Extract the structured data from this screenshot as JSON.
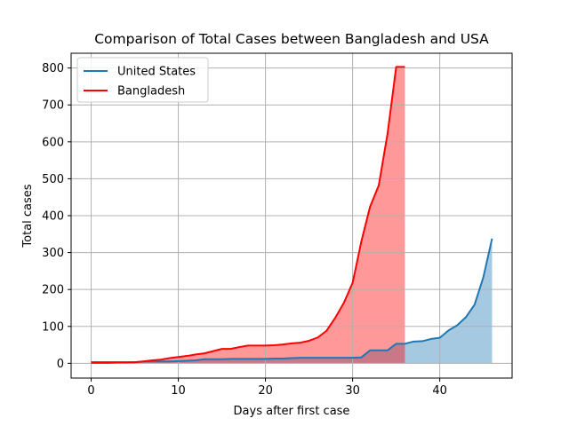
{
  "chart_data": {
    "type": "area",
    "title": "Comparison of Total Cases between Bangladesh and USA",
    "xlabel": "Days after first case",
    "ylabel": "Total cases",
    "xlim": [
      -2.3,
      48.3
    ],
    "ylim": [
      -40,
      840
    ],
    "xticks": [
      0,
      10,
      20,
      30,
      40
    ],
    "yticks": [
      0,
      100,
      200,
      300,
      400,
      500,
      600,
      700,
      800
    ],
    "grid": true,
    "legend_position": "top-left",
    "series": [
      {
        "name": "United States",
        "color": "#1f77b4",
        "fill_color": "#1f77b4",
        "fill_opacity": 0.4,
        "x": [
          0,
          1,
          2,
          3,
          4,
          5,
          6,
          7,
          8,
          9,
          10,
          11,
          12,
          13,
          14,
          15,
          16,
          17,
          18,
          19,
          20,
          21,
          22,
          23,
          24,
          25,
          26,
          27,
          28,
          29,
          30,
          31,
          32,
          33,
          34,
          35,
          36,
          37,
          38,
          39,
          40,
          41,
          42,
          43,
          44,
          45,
          46
        ],
        "values": [
          1,
          1,
          1,
          2,
          2,
          3,
          5,
          5,
          5,
          5,
          6,
          7,
          8,
          11,
          11,
          11,
          12,
          12,
          12,
          12,
          12,
          13,
          13,
          14,
          15,
          15,
          15,
          15,
          15,
          15,
          15,
          16,
          35,
          35,
          35,
          53,
          53,
          59,
          60,
          66,
          69,
          89,
          103,
          125,
          159,
          233,
          338
        ]
      },
      {
        "name": "Bangladesh",
        "color": "#ff0000",
        "fill_color": "#ff0000",
        "fill_opacity": 0.4,
        "x": [
          0,
          1,
          2,
          3,
          4,
          5,
          6,
          7,
          8,
          9,
          10,
          11,
          12,
          13,
          14,
          15,
          16,
          17,
          18,
          19,
          20,
          21,
          22,
          23,
          24,
          25,
          26,
          27,
          28,
          29,
          30,
          31,
          32,
          33,
          34,
          35,
          36
        ],
        "values": [
          3,
          3,
          3,
          3,
          3,
          3,
          5,
          8,
          10,
          14,
          17,
          20,
          24,
          27,
          33,
          39,
          39,
          44,
          48,
          48,
          48,
          49,
          51,
          54,
          56,
          61,
          70,
          88,
          123,
          164,
          218,
          330,
          424,
          482,
          621,
          803,
          803
        ]
      }
    ]
  }
}
